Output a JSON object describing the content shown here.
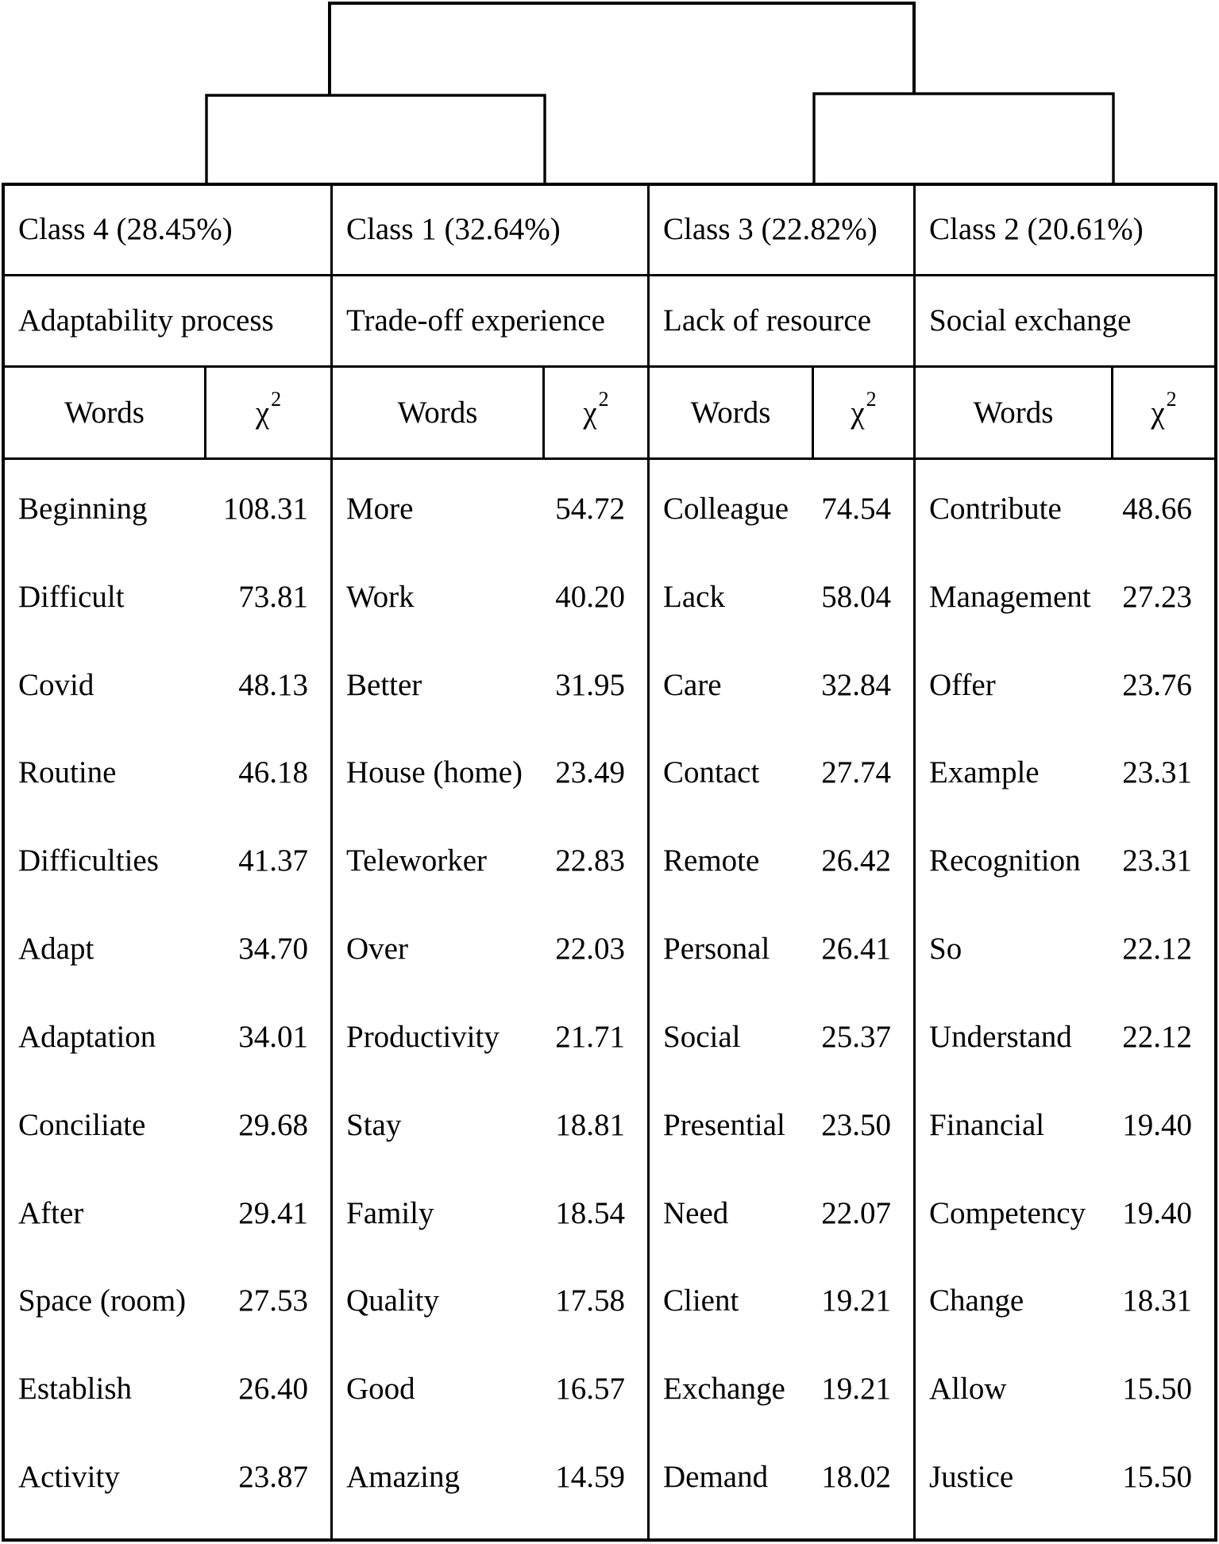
{
  "colors": {
    "background": "#ffffff",
    "line": "#000000",
    "text": "#000000"
  },
  "table": {
    "header": {
      "words": "Words",
      "chi_symbol": "χ",
      "chi_sup": "2"
    },
    "columns": [
      {
        "class_label": "Class 4 (28.45%)",
        "subtitle": "Adaptability process",
        "rows": [
          {
            "word": "Beginning",
            "chi2": "108.31"
          },
          {
            "word": "Difficult",
            "chi2": "73.81"
          },
          {
            "word": "Covid",
            "chi2": "48.13"
          },
          {
            "word": "Routine",
            "chi2": "46.18"
          },
          {
            "word": "Difficulties",
            "chi2": "41.37"
          },
          {
            "word": "Adapt",
            "chi2": "34.70"
          },
          {
            "word": "Adaptation",
            "chi2": "34.01"
          },
          {
            "word": "Conciliate",
            "chi2": "29.68"
          },
          {
            "word": "After",
            "chi2": "29.41"
          },
          {
            "word": "Space (room)",
            "chi2": "27.53"
          },
          {
            "word": "Establish",
            "chi2": "26.40"
          },
          {
            "word": "Activity",
            "chi2": "23.87"
          }
        ]
      },
      {
        "class_label": "Class 1 (32.64%)",
        "subtitle": "Trade-off experience",
        "rows": [
          {
            "word": "More",
            "chi2": "54.72"
          },
          {
            "word": "Work",
            "chi2": "40.20"
          },
          {
            "word": "Better",
            "chi2": "31.95"
          },
          {
            "word": "House (home)",
            "chi2": "23.49"
          },
          {
            "word": "Teleworker",
            "chi2": "22.83"
          },
          {
            "word": "Over",
            "chi2": "22.03"
          },
          {
            "word": "Productivity",
            "chi2": "21.71"
          },
          {
            "word": "Stay",
            "chi2": "18.81"
          },
          {
            "word": "Family",
            "chi2": "18.54"
          },
          {
            "word": "Quality",
            "chi2": "17.58"
          },
          {
            "word": "Good",
            "chi2": "16.57"
          },
          {
            "word": "Amazing",
            "chi2": "14.59"
          }
        ]
      },
      {
        "class_label": "Class 3 (22.82%)",
        "subtitle": "Lack of resource",
        "rows": [
          {
            "word": "Colleague",
            "chi2": "74.54"
          },
          {
            "word": "Lack",
            "chi2": "58.04"
          },
          {
            "word": "Care",
            "chi2": "32.84"
          },
          {
            "word": "Contact",
            "chi2": "27.74"
          },
          {
            "word": "Remote",
            "chi2": "26.42"
          },
          {
            "word": "Personal",
            "chi2": "26.41"
          },
          {
            "word": "Social",
            "chi2": "25.37"
          },
          {
            "word": "Presential",
            "chi2": "23.50"
          },
          {
            "word": "Need",
            "chi2": "22.07"
          },
          {
            "word": "Client",
            "chi2": "19.21"
          },
          {
            "word": "Exchange",
            "chi2": "19.21"
          },
          {
            "word": "Demand",
            "chi2": "18.02"
          }
        ]
      },
      {
        "class_label": "Class 2 (20.61%)",
        "subtitle": "Social exchange",
        "rows": [
          {
            "word": "Contribute",
            "chi2": "48.66"
          },
          {
            "word": "Management",
            "chi2": "27.23"
          },
          {
            "word": "Offer",
            "chi2": "23.76"
          },
          {
            "word": "Example",
            "chi2": "23.31"
          },
          {
            "word": "Recognition",
            "chi2": "23.31"
          },
          {
            "word": "So",
            "chi2": "22.12"
          },
          {
            "word": "Understand",
            "chi2": "22.12"
          },
          {
            "word": "Financial",
            "chi2": "19.40"
          },
          {
            "word": "Competency",
            "chi2": "19.40"
          },
          {
            "word": "Change",
            "chi2": "18.31"
          },
          {
            "word": "Allow",
            "chi2": "15.50"
          },
          {
            "word": "Justice",
            "chi2": "15.50"
          }
        ]
      }
    ]
  },
  "chart_data": {
    "type": "table",
    "title": "",
    "dendrogram": {
      "root_joins": [
        [
          "Class 4 (28.45%)",
          "Class 1 (32.64%)"
        ],
        [
          "Class 3 (22.82%)",
          "Class 2 (20.61%)"
        ]
      ]
    },
    "classes": [
      {
        "name": "Class 4",
        "percent": 28.45,
        "theme": "Adaptability process",
        "words": [
          "Beginning",
          "Difficult",
          "Covid",
          "Routine",
          "Difficulties",
          "Adapt",
          "Adaptation",
          "Conciliate",
          "After",
          "Space (room)",
          "Establish",
          "Activity"
        ],
        "chi2": [
          108.31,
          73.81,
          48.13,
          46.18,
          41.37,
          34.7,
          34.01,
          29.68,
          29.41,
          27.53,
          26.4,
          23.87
        ]
      },
      {
        "name": "Class 1",
        "percent": 32.64,
        "theme": "Trade-off experience",
        "words": [
          "More",
          "Work",
          "Better",
          "House (home)",
          "Teleworker",
          "Over",
          "Productivity",
          "Stay",
          "Family",
          "Quality",
          "Good",
          "Amazing"
        ],
        "chi2": [
          54.72,
          40.2,
          31.95,
          23.49,
          22.83,
          22.03,
          21.71,
          18.81,
          18.54,
          17.58,
          16.57,
          14.59
        ]
      },
      {
        "name": "Class 3",
        "percent": 22.82,
        "theme": "Lack of resource",
        "words": [
          "Colleague",
          "Lack",
          "Care",
          "Contact",
          "Remote",
          "Personal",
          "Social",
          "Presential",
          "Need",
          "Client",
          "Exchange",
          "Demand"
        ],
        "chi2": [
          74.54,
          58.04,
          32.84,
          27.74,
          26.42,
          26.41,
          25.37,
          23.5,
          22.07,
          19.21,
          19.21,
          18.02
        ]
      },
      {
        "name": "Class 2",
        "percent": 20.61,
        "theme": "Social exchange",
        "words": [
          "Contribute",
          "Management",
          "Offer",
          "Example",
          "Recognition",
          "So",
          "Understand",
          "Financial",
          "Competency",
          "Change",
          "Allow",
          "Justice"
        ],
        "chi2": [
          48.66,
          27.23,
          23.76,
          23.31,
          23.31,
          22.12,
          22.12,
          19.4,
          19.4,
          18.31,
          15.5,
          15.5
        ]
      }
    ],
    "value_column_header": "χ2",
    "word_column_header": "Words",
    "legend": "none",
    "grid": "table borders"
  }
}
